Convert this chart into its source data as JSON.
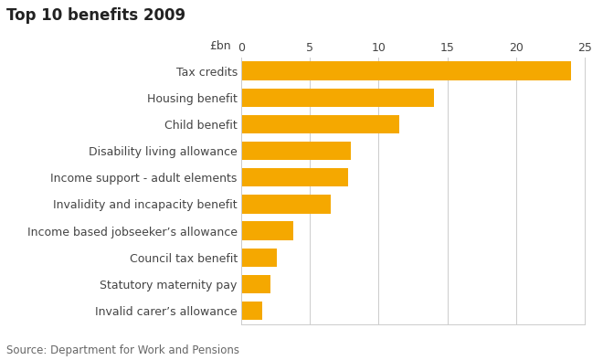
{
  "title": "Top 10 benefits 2009",
  "source": "Source: Department for Work and Pensions",
  "categories": [
    "Invalid carer’s allowance",
    "Statutory maternity pay",
    "Council tax benefit",
    "Income based jobseeker’s allowance",
    "Invalidity and incapacity benefit",
    "Income support - adult elements",
    "Disability living allowance",
    "Child benefit",
    "Housing benefit",
    "Tax credits"
  ],
  "values": [
    1.5,
    2.1,
    2.6,
    3.8,
    6.5,
    7.8,
    8.0,
    11.5,
    14.0,
    24.0
  ],
  "bar_color": "#F5A800",
  "xlim": [
    0,
    25
  ],
  "xticks": [
    0,
    5,
    10,
    15,
    20,
    25
  ],
  "background_color": "#ffffff",
  "title_fontsize": 12,
  "label_fontsize": 9,
  "tick_fontsize": 9,
  "source_fontsize": 8.5,
  "bar_height": 0.7
}
